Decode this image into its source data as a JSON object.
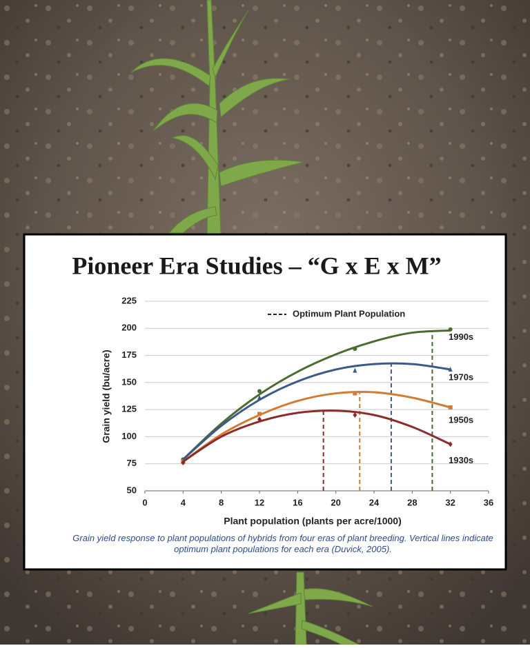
{
  "chart_data": {
    "type": "line",
    "title": "Pioneer Era Studies – “G x E x M”",
    "x_label": "Plant population (plants per acre/1000)",
    "y_label": "Grain  yield  (bu/acre)",
    "legend_label": "Optimum Plant Population",
    "caption": "Grain yield response to plant populations of hybrids from four eras of plant breeding. Vertical lines indicate optimum plant populations for each era (Duvick, 2005).",
    "xlim": [
      0,
      36
    ],
    "xticks": [
      0,
      4,
      8,
      12,
      16,
      20,
      24,
      28,
      32,
      36
    ],
    "ylim": [
      50,
      225
    ],
    "yticks": [
      50,
      75,
      100,
      125,
      150,
      175,
      200,
      225
    ],
    "grid": true,
    "x": [
      4,
      12,
      22,
      32
    ],
    "fit_x": [
      4,
      8,
      12,
      16,
      20,
      24,
      28,
      32
    ],
    "series": [
      {
        "name": "1990s",
        "color": "#4b6b2f",
        "marker": "circle",
        "values": [
          79,
          142,
          181,
          199
        ],
        "fit": [
          79,
          112,
          139,
          160,
          176,
          188,
          196,
          198
        ],
        "optimum": 30.1
      },
      {
        "name": "1970s",
        "color": "#3b5a8a",
        "marker": "triangle",
        "values": [
          78,
          136,
          161,
          162
        ],
        "fit": [
          79,
          110,
          134,
          151,
          162,
          167,
          167,
          162
        ],
        "optimum": 25.8
      },
      {
        "name": "1950s",
        "color": "#d27b32",
        "marker": "square",
        "values": [
          77,
          121,
          140,
          127
        ],
        "fit": [
          77,
          102,
          120,
          133,
          140,
          141,
          136,
          127
        ],
        "optimum": 22.5
      },
      {
        "name": "1930s",
        "color": "#8b2b2b",
        "marker": "diamond",
        "values": [
          76,
          116,
          120,
          93
        ],
        "fit": [
          77,
          100,
          114,
          122,
          124,
          120,
          109,
          93
        ],
        "optimum": 18.7
      }
    ]
  }
}
